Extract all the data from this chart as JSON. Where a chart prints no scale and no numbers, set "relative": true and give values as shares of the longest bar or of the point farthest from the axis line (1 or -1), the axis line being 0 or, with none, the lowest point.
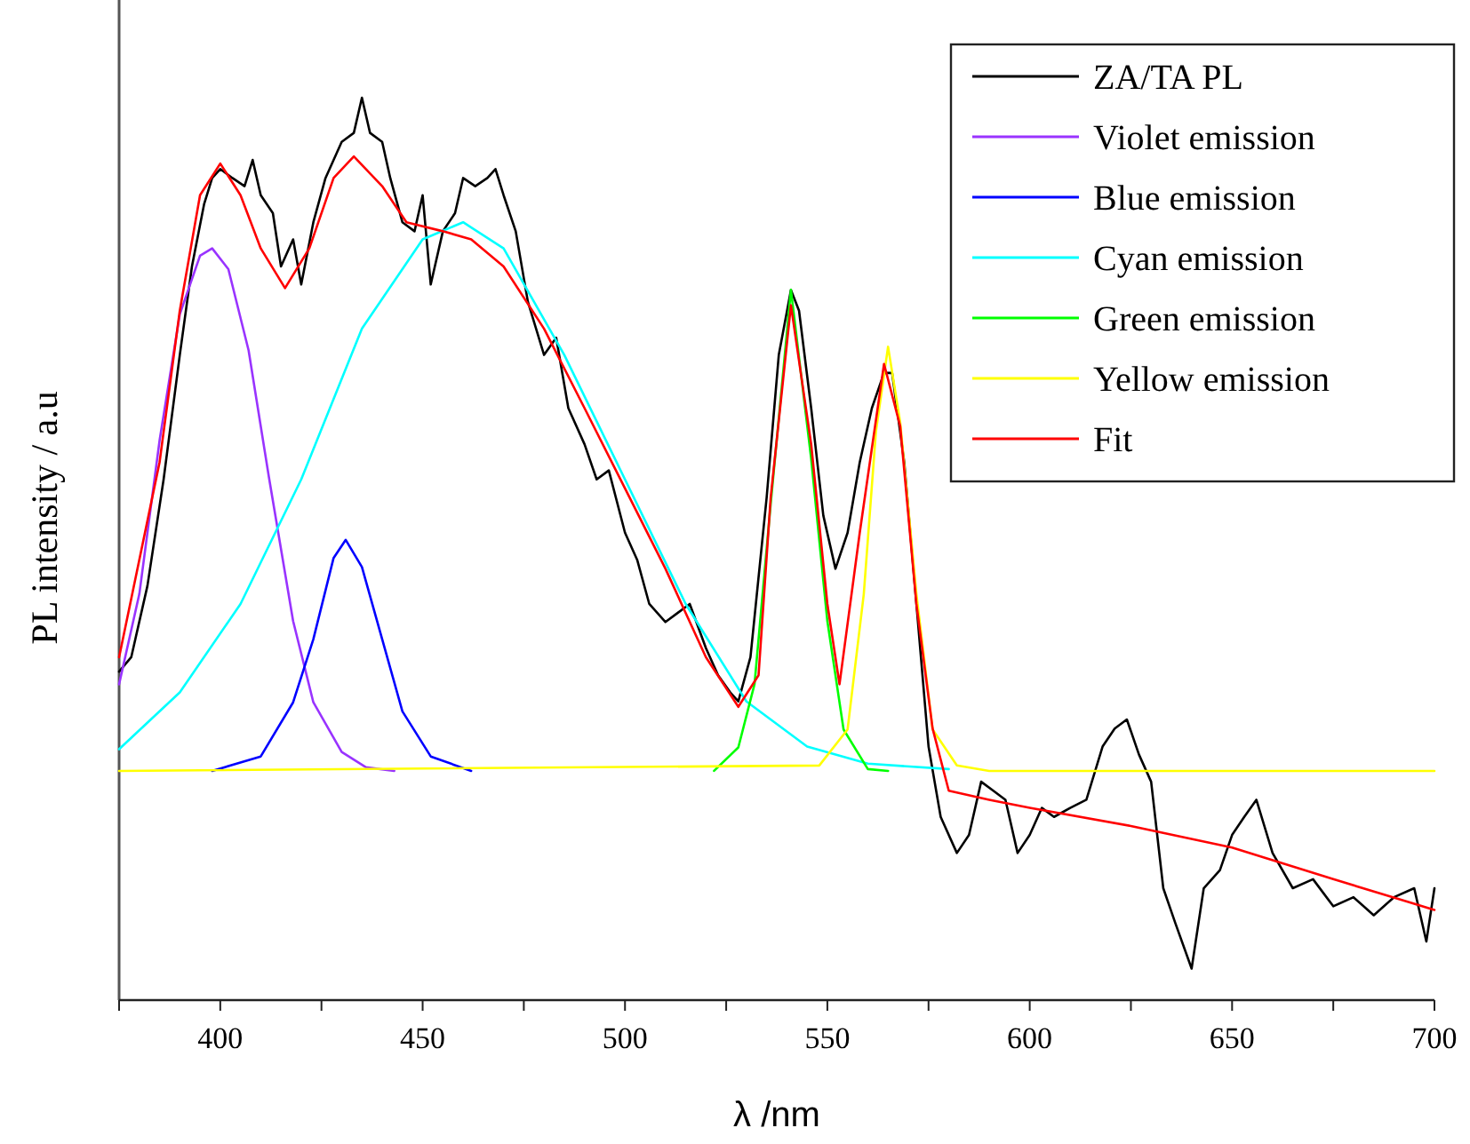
{
  "chart_data": {
    "type": "line",
    "relative": true,
    "xlabel": "λ /nm",
    "ylabel": "PL intensity / a.u",
    "xlim": [
      375,
      700
    ],
    "xticks": [
      {
        "value": 375,
        "label": null
      },
      400,
      {
        "value": 425,
        "label": null
      },
      450,
      {
        "value": 475,
        "label": null
      },
      500,
      {
        "value": 525,
        "label": null
      },
      550,
      {
        "value": 575,
        "label": null
      },
      600,
      {
        "value": 625,
        "label": null
      },
      650,
      {
        "value": 675,
        "label": null
      },
      700
    ],
    "legend": "top right",
    "marker": "none",
    "line_style": "solid",
    "grid": false,
    "series": [
      {
        "name": "ZA/TA PL",
        "color": "#000000",
        "x": [
          375,
          378,
          382,
          386,
          390,
          393,
          396,
          398,
          400,
          403,
          406,
          408,
          410,
          413,
          415,
          418,
          420,
          423,
          426,
          430,
          433,
          435,
          437,
          440,
          442,
          445,
          448,
          450,
          452,
          455,
          458,
          460,
          463,
          466,
          468,
          470,
          473,
          476,
          480,
          483,
          486,
          490,
          493,
          496,
          500,
          503,
          506,
          510,
          513,
          516,
          520,
          523,
          526,
          528,
          531,
          535,
          538,
          541,
          543,
          546,
          549,
          552,
          555,
          558,
          561,
          564,
          566,
          569,
          572,
          575,
          578,
          582,
          585,
          588,
          591,
          594,
          597,
          600,
          603,
          606,
          610,
          614,
          618,
          621,
          624,
          627,
          630,
          633,
          636,
          640,
          643,
          647,
          650,
          653,
          656,
          660,
          665,
          670,
          675,
          680,
          685,
          690,
          695,
          698,
          700
        ],
        "values": [
          0.364,
          0.38,
          0.459,
          0.577,
          0.715,
          0.813,
          0.882,
          0.911,
          0.921,
          0.911,
          0.902,
          0.931,
          0.892,
          0.872,
          0.813,
          0.843,
          0.793,
          0.862,
          0.911,
          0.951,
          0.961,
          1.0,
          0.961,
          0.951,
          0.911,
          0.862,
          0.852,
          0.892,
          0.793,
          0.852,
          0.872,
          0.911,
          0.902,
          0.911,
          0.921,
          0.892,
          0.852,
          0.774,
          0.715,
          0.734,
          0.656,
          0.616,
          0.577,
          0.587,
          0.518,
          0.488,
          0.439,
          0.419,
          0.429,
          0.439,
          0.39,
          0.36,
          0.341,
          0.331,
          0.38,
          0.557,
          0.715,
          0.787,
          0.764,
          0.656,
          0.537,
          0.478,
          0.518,
          0.596,
          0.656,
          0.695,
          0.695,
          0.596,
          0.439,
          0.281,
          0.203,
          0.163,
          0.183,
          0.242,
          0.232,
          0.222,
          0.163,
          0.183,
          0.213,
          0.203,
          0.213,
          0.222,
          0.281,
          0.301,
          0.311,
          0.272,
          0.242,
          0.124,
          0.085,
          0.035,
          0.124,
          0.144,
          0.183,
          0.203,
          0.222,
          0.163,
          0.124,
          0.134,
          0.104,
          0.114,
          0.094,
          0.114,
          0.124,
          0.065,
          0.124
        ]
      },
      {
        "name": "Violet emission",
        "color": "#9933ff",
        "x": [
          375,
          380,
          385,
          390,
          395,
          398,
          402,
          407,
          412,
          418,
          423,
          430,
          436,
          443
        ],
        "values": [
          0.35,
          0.45,
          0.62,
          0.76,
          0.825,
          0.833,
          0.81,
          0.72,
          0.58,
          0.42,
          0.33,
          0.275,
          0.258,
          0.254
        ]
      },
      {
        "name": "Blue emission",
        "color": "#0000ff",
        "x": [
          398,
          410,
          418,
          423,
          428,
          431,
          435,
          440,
          445,
          452,
          462
        ],
        "values": [
          0.254,
          0.27,
          0.33,
          0.4,
          0.49,
          0.51,
          0.48,
          0.4,
          0.32,
          0.27,
          0.254
        ]
      },
      {
        "name": "Cyan emission",
        "color": "#00ffff",
        "x": [
          375,
          390,
          405,
          420,
          435,
          450,
          460,
          470,
          485,
          500,
          515,
          530,
          545,
          560,
          580
        ],
        "values": [
          0.278,
          0.341,
          0.439,
          0.577,
          0.744,
          0.843,
          0.862,
          0.833,
          0.715,
          0.577,
          0.439,
          0.331,
          0.281,
          0.262,
          0.256
        ]
      },
      {
        "name": "Green emission",
        "color": "#00ff00",
        "x": [
          522,
          528,
          532,
          536,
          541,
          546,
          550,
          554,
          560,
          565
        ],
        "values": [
          0.254,
          0.28,
          0.35,
          0.55,
          0.787,
          0.6,
          0.42,
          0.3,
          0.256,
          0.254
        ]
      },
      {
        "name": "Yellow emission",
        "color": "#ffff00",
        "x": [
          375,
          548,
          555,
          559,
          562,
          565,
          568,
          572,
          576,
          582,
          590,
          700
        ],
        "values": [
          0.254,
          0.26,
          0.3,
          0.45,
          0.63,
          0.724,
          0.64,
          0.45,
          0.3,
          0.26,
          0.254,
          0.254
        ]
      },
      {
        "name": "Fit",
        "color": "#ff0000",
        "x": [
          375,
          385,
          390,
          395,
          400,
          405,
          410,
          416,
          422,
          428,
          433,
          440,
          446,
          455,
          462,
          470,
          480,
          490,
          500,
          510,
          520,
          528,
          533,
          536,
          541,
          546,
          550,
          553,
          558,
          564,
          568,
          572,
          576,
          580,
          590,
          600,
          625,
          650,
          675,
          700
        ],
        "values": [
          0.38,
          0.596,
          0.764,
          0.892,
          0.927,
          0.892,
          0.833,
          0.789,
          0.833,
          0.911,
          0.935,
          0.902,
          0.862,
          0.852,
          0.843,
          0.813,
          0.744,
          0.656,
          0.567,
          0.478,
          0.38,
          0.325,
          0.36,
          0.557,
          0.77,
          0.616,
          0.439,
          0.35,
          0.518,
          0.705,
          0.636,
          0.439,
          0.301,
          0.232,
          0.222,
          0.213,
          0.193,
          0.169,
          0.134,
          0.1
        ]
      }
    ]
  }
}
